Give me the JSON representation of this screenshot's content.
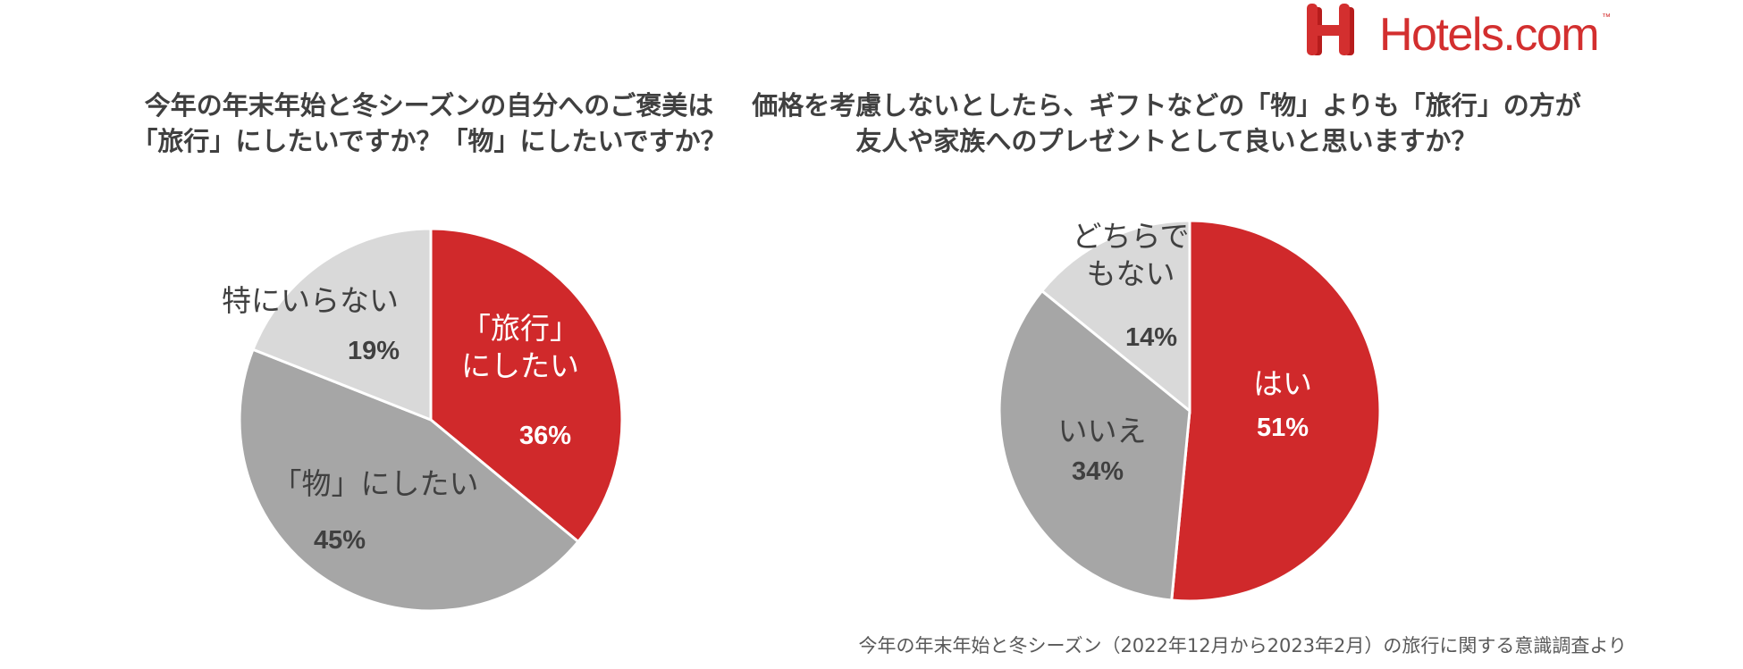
{
  "logo": {
    "text": "Hotels.com",
    "tm": "™",
    "color": "#d32f2f"
  },
  "charts": {
    "left": {
      "title_line1": "今年の年末年始と冬シーズンの自分へのご褒美は",
      "title_line2": "「旅行」にしたいですか？「物」にしたいですか？"
    },
    "right": {
      "title_line1": "価格を考慮しないとしたら、ギフトなどの「物」よりも「旅行」の方が",
      "title_line2": "友人や家族へのプレゼントとして良いと思いますか？"
    }
  },
  "chart_data": [
    {
      "type": "pie",
      "title": "今年の年末年始と冬シーズンの自分へのご褒美は「旅行」にしたいですか？「物」にしたいですか？",
      "slices": [
        {
          "label_lines": [
            "「旅行」",
            "にしたい"
          ],
          "pct_label": "36%",
          "value": 36,
          "color": "#d0292b",
          "text_color": "#ffffff"
        },
        {
          "label_lines": [
            "「物」にしたい"
          ],
          "pct_label": "45%",
          "value": 45,
          "color": "#a6a6a6",
          "text_color": "#404040"
        },
        {
          "label_lines": [
            "特にいらない"
          ],
          "pct_label": "19%",
          "value": 19,
          "color": "#d9d9d9",
          "text_color": "#404040"
        }
      ]
    },
    {
      "type": "pie",
      "title": "価格を考慮しないとしたら、ギフトなどの「物」よりも「旅行」の方が友人や家族へのプレゼントとして良いと思いますか？",
      "slices": [
        {
          "label_lines": [
            "はい"
          ],
          "pct_label": "51%",
          "value": 51,
          "color": "#d0292b",
          "text_color": "#ffffff"
        },
        {
          "label_lines": [
            "いいえ"
          ],
          "pct_label": "34%",
          "value": 34,
          "color": "#a6a6a6",
          "text_color": "#404040"
        },
        {
          "label_lines": [
            "どちらで",
            "もない"
          ],
          "pct_label": "14%",
          "value": 14,
          "color": "#d9d9d9",
          "text_color": "#404040"
        }
      ]
    }
  ],
  "source": "今年の年末年始と冬シーズン（2022年12月から2023年2月）の旅行に関する意識調査より"
}
